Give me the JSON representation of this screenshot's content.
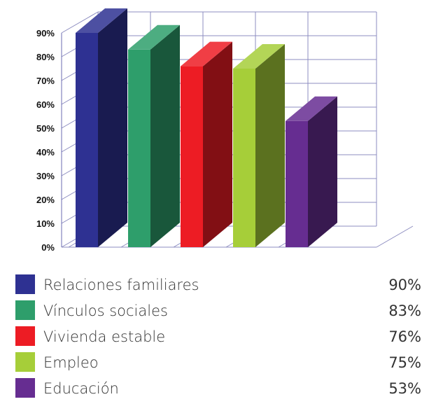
{
  "chart_data": {
    "type": "bar",
    "categories": [
      "Relaciones familiares",
      "Vínculos sociales",
      "Vivienda estable",
      "Empleo",
      "Educación"
    ],
    "values": [
      90,
      83,
      76,
      75,
      53
    ],
    "value_labels": [
      "90%",
      "83%",
      "76%",
      "75%",
      "53%"
    ],
    "colors": [
      "#2e3192",
      "#2e9e6b",
      "#ed1c24",
      "#a6ce39",
      "#662d91"
    ],
    "yticks": [
      "0%",
      "10%",
      "20%",
      "30%",
      "40%",
      "50%",
      "60%",
      "70%",
      "80%",
      "90%"
    ],
    "ylim": [
      0,
      90
    ],
    "grid": true,
    "legend_position": "bottom",
    "style": "3d"
  }
}
